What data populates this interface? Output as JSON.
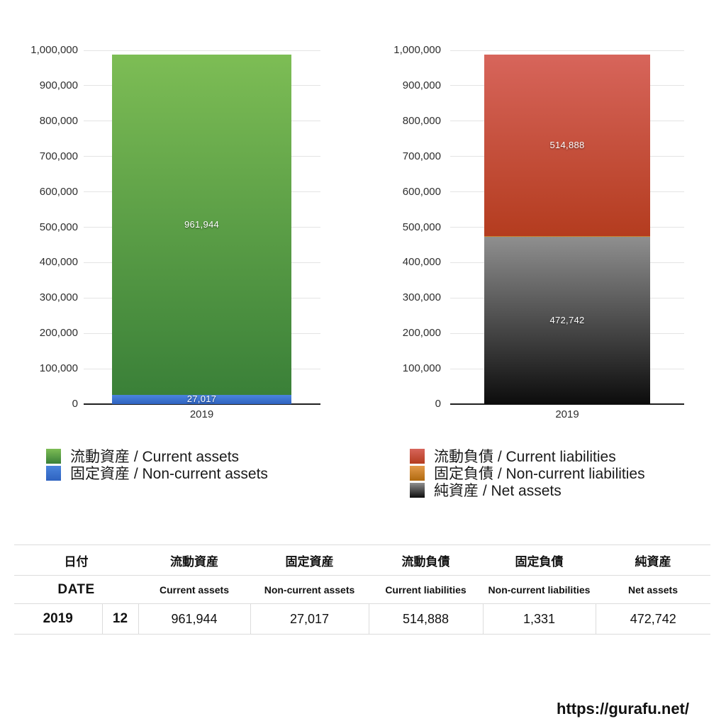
{
  "page": {
    "url_text": "https://gurafu.net/"
  },
  "charts": [
    {
      "name": "assets",
      "x_label": "2019",
      "y_tick_labels": [
        "0",
        "100,000",
        "200,000",
        "300,000",
        "400,000",
        "500,000",
        "600,000",
        "700,000",
        "800,000",
        "900,000",
        "1,000,000"
      ],
      "segments_bottom_to_top": [
        {
          "name": "固定資産 / Non-current assets",
          "value": 27017,
          "label": "27,017",
          "color_top": "#4a84dd",
          "color_bottom": "#2f63c0"
        },
        {
          "name": "流動資産 / Current assets",
          "value": 961944,
          "label": "961,944",
          "color_top": "#7dbd55",
          "color_bottom": "#3a8038"
        }
      ],
      "legend": [
        {
          "label": "流動資産 / Current assets",
          "color_top": "#7dbd55",
          "color_bottom": "#3a8038"
        },
        {
          "label": "固定資産 / Non-current assets",
          "color_top": "#4a84dd",
          "color_bottom": "#2f63c0"
        }
      ]
    },
    {
      "name": "liabilities",
      "x_label": "2019",
      "y_tick_labels": [
        "0",
        "100,000",
        "200,000",
        "300,000",
        "400,000",
        "500,000",
        "600,000",
        "700,000",
        "800,000",
        "900,000",
        "1,000,000"
      ],
      "segments_bottom_to_top": [
        {
          "name": "純資産 / Net assets",
          "value": 472742,
          "label": "472,742",
          "color_top": "#8f8f8f",
          "color_bottom": "#0c0c0c"
        },
        {
          "name": "固定負債 / Non-current liabilities",
          "value": 1331,
          "label": "1,331",
          "color_top": "#e39a4a",
          "color_bottom": "#b06a10"
        },
        {
          "name": "流動負債 / Current liabilities",
          "value": 514888,
          "label": "514,888",
          "color_top": "#d7655b",
          "color_bottom": "#b43c1f"
        }
      ],
      "legend": [
        {
          "label": "流動負債 / Current liabilities",
          "color_top": "#d7655b",
          "color_bottom": "#b43c1f"
        },
        {
          "label": "固定負債 / Non-current liabilities",
          "color_top": "#e39a4a",
          "color_bottom": "#b06a10"
        },
        {
          "label": "純資産 / Net assets",
          "color_top": "#8f8f8f",
          "color_bottom": "#0c0c0c"
        }
      ]
    }
  ],
  "chart_data": [
    {
      "type": "bar",
      "stacked": true,
      "title": "",
      "categories": [
        "2019"
      ],
      "series": [
        {
          "name": "流動資産 / Current assets",
          "values": [
            961944
          ]
        },
        {
          "name": "固定資産 / Non-current assets",
          "values": [
            27017
          ]
        }
      ],
      "stack_order_bottom_to_top": [
        "固定資産 / Non-current assets",
        "流動資産 / Current assets"
      ],
      "ylim": [
        0,
        1000000
      ],
      "y_tick_interval": 100000,
      "grid": true,
      "legend_position": "bottom",
      "data_labels": [
        "961,944",
        "27,017"
      ]
    },
    {
      "type": "bar",
      "stacked": true,
      "title": "",
      "categories": [
        "2019"
      ],
      "series": [
        {
          "name": "流動負債 / Current liabilities",
          "values": [
            514888
          ]
        },
        {
          "name": "固定負債 / Non-current liabilities",
          "values": [
            1331
          ]
        },
        {
          "name": "純資産 / Net assets",
          "values": [
            472742
          ]
        }
      ],
      "stack_order_bottom_to_top": [
        "純資産 / Net assets",
        "固定負債 / Non-current liabilities",
        "流動負債 / Current liabilities"
      ],
      "ylim": [
        0,
        1000000
      ],
      "y_tick_interval": 100000,
      "grid": true,
      "legend_position": "bottom",
      "data_labels": [
        "514,888",
        "1,331",
        "472,742"
      ]
    }
  ],
  "table": {
    "header_row1": [
      "日付",
      "流動資産",
      "固定資産",
      "流動負債",
      "固定負債",
      "純資産"
    ],
    "header_row2": [
      "DATE",
      "Current assets",
      "Non-current assets",
      "Current liabilities",
      "Non-current liabilities",
      "Net assets"
    ],
    "data_row": [
      "2019",
      "12",
      "961,944",
      "27,017",
      "514,888",
      "1,331",
      "472,742"
    ]
  }
}
